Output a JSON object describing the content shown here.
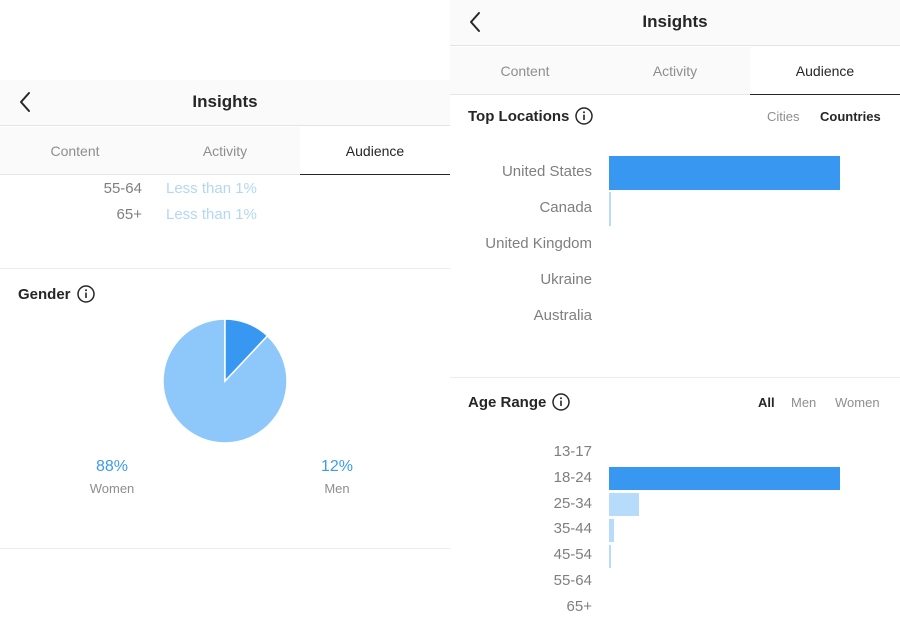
{
  "left": {
    "header": {
      "title": "Insights"
    },
    "tabs": [
      {
        "label": "Content",
        "active": false
      },
      {
        "label": "Activity",
        "active": false
      },
      {
        "label": "Audience",
        "active": true
      }
    ],
    "age_rows": [
      {
        "range": "55-64",
        "value": "Less than 1%"
      },
      {
        "range": "65+",
        "value": "Less than 1%"
      }
    ],
    "gender": {
      "title": "Gender",
      "women": {
        "pct": "88%",
        "label": "Women",
        "value": 88
      },
      "men": {
        "pct": "12%",
        "label": "Men",
        "value": 12
      },
      "colors": {
        "women": "#8ec8fb",
        "men": "#3897f0"
      }
    }
  },
  "right": {
    "header": {
      "title": "Insights"
    },
    "tabs": [
      {
        "label": "Content",
        "active": false
      },
      {
        "label": "Activity",
        "active": false
      },
      {
        "label": "Audience",
        "active": true
      }
    ],
    "top_locations": {
      "title": "Top Locations",
      "toggles": [
        {
          "label": "Cities",
          "active": false
        },
        {
          "label": "Countries",
          "active": true
        }
      ]
    },
    "age_range": {
      "title": "Age Range",
      "toggles": [
        {
          "label": "All",
          "active": true
        },
        {
          "label": "Men",
          "active": false
        },
        {
          "label": "Women",
          "active": false
        }
      ]
    }
  },
  "colors": {
    "bar_primary": "#3897f0",
    "bar_light": "#b7dcfb",
    "muted_text": "#8e8e8e"
  },
  "chart_data": [
    {
      "type": "bar",
      "title": "Top Locations",
      "categories": [
        "United States",
        "Canada",
        "United Kingdom",
        "Ukraine",
        "Australia"
      ],
      "values": [
        100,
        1,
        0,
        0,
        0
      ]
    },
    {
      "type": "bar",
      "title": "Age Range",
      "categories": [
        "13-17",
        "18-24",
        "25-34",
        "35-44",
        "45-54",
        "55-64",
        "65+"
      ],
      "values": [
        0,
        100,
        13,
        2,
        1,
        0,
        0
      ]
    },
    {
      "type": "pie",
      "title": "Gender",
      "categories": [
        "Women",
        "Men"
      ],
      "values": [
        88,
        12
      ]
    }
  ]
}
